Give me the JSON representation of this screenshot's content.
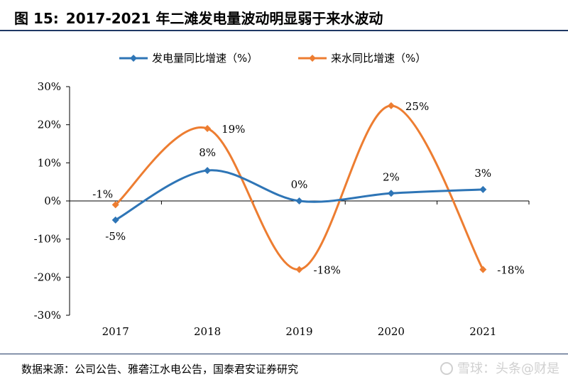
{
  "title": {
    "figure_label": "图 15:",
    "text": "2017-2021 年二滩发电量波动明显弱于来水波动"
  },
  "source": {
    "text": "数据来源：公司公告、雅砻江水电公告，国泰君安证券研究",
    "watermark": "雪球：头条@财是"
  },
  "colors": {
    "series1": "#2e75b6",
    "series2": "#ed7d31",
    "axis": "#000000",
    "rule": "#1f3864"
  },
  "chart_data": {
    "type": "line",
    "title": "2017-2021 年二滩发电量波动明显弱于来水波动",
    "categories": [
      "2017",
      "2018",
      "2019",
      "2020",
      "2021"
    ],
    "ylim": [
      -30,
      30
    ],
    "yticks": [
      -30,
      -20,
      -10,
      0,
      10,
      20,
      30
    ],
    "ytick_labels": [
      "-30%",
      "-20%",
      "-10%",
      "0%",
      "10%",
      "20%",
      "30%"
    ],
    "grid": false,
    "legend_position": "top",
    "smooth": true,
    "series": [
      {
        "name": "发电量同比增速（%）",
        "color": "#2e75b6",
        "marker": "diamond",
        "values": [
          -5,
          8,
          0,
          2,
          3
        ],
        "labels": [
          "-5%",
          "8%",
          "0%",
          "2%",
          "3%"
        ]
      },
      {
        "name": "来水同比增速（%）",
        "color": "#ed7d31",
        "marker": "diamond",
        "values": [
          -1,
          19,
          -18,
          25,
          -18
        ],
        "labels": [
          "-1%",
          "19%",
          "-18%",
          "25%",
          "-18%"
        ]
      }
    ]
  }
}
